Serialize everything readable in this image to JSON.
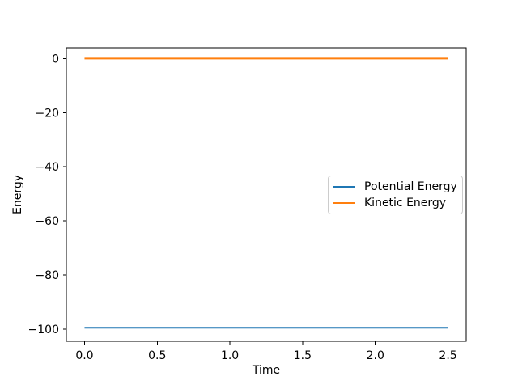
{
  "figure": {
    "background": "#ffffff",
    "axis_color": "#000000"
  },
  "chart_data": {
    "type": "line",
    "title": "",
    "xlabel": "Time",
    "ylabel": "Energy",
    "xlim": [
      -0.125,
      2.625
    ],
    "ylim": [
      -104.5,
      4.0
    ],
    "xtick_values": [
      0.0,
      0.5,
      1.0,
      1.5,
      2.0,
      2.5
    ],
    "xtick_labels": [
      "0.0",
      "0.5",
      "1.0",
      "1.5",
      "2.0",
      "2.5"
    ],
    "ytick_values": [
      0,
      -20,
      -40,
      -60,
      -80,
      -100
    ],
    "ytick_labels": [
      "0",
      "−20",
      "−40",
      "−60",
      "−80",
      "−100"
    ],
    "grid": false,
    "legend_position": "center right",
    "legend_border_color": "#cccccc",
    "series": [
      {
        "name": "Potential Energy",
        "color": "#1f77b4",
        "x": [
          0.0,
          2.5
        ],
        "y": [
          -99.5,
          -99.5
        ]
      },
      {
        "name": "Kinetic Energy",
        "color": "#ff7f0e",
        "x": [
          0.0,
          2.5
        ],
        "y": [
          0.0,
          0.0
        ]
      }
    ]
  }
}
